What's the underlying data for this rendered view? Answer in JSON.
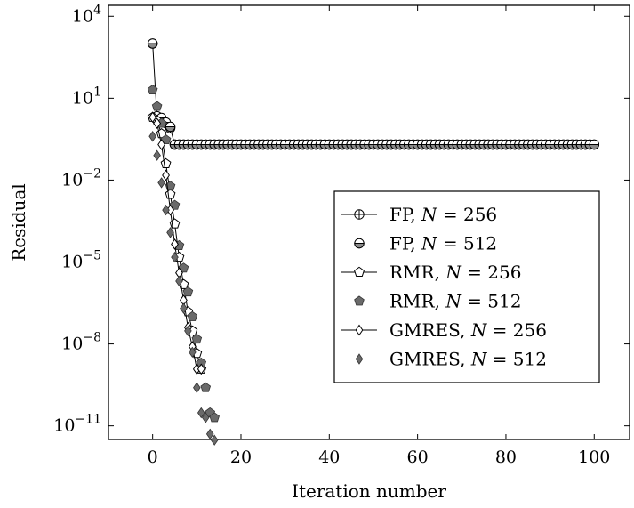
{
  "chart_data": {
    "type": "line",
    "title": "",
    "xlabel": "Iteration number",
    "ylabel": "Residual",
    "xlim": [
      -10,
      108
    ],
    "ylim_log10": [
      -11.5,
      4.4
    ],
    "y_scale": "log",
    "x_ticks": [
      0,
      20,
      40,
      60,
      80,
      100
    ],
    "x_tick_labels": [
      "0",
      "20",
      "40",
      "60",
      "80",
      "100"
    ],
    "y_ticks": [
      {
        "base": "10",
        "exp": "4",
        "value": 10000
      },
      {
        "base": "10",
        "exp": "1",
        "value": 10
      },
      {
        "base": "10",
        "exp": "−2",
        "value": 0.01
      },
      {
        "base": "10",
        "exp": "−5",
        "value": 1e-05
      },
      {
        "base": "10",
        "exp": "−8",
        "value": 1e-08
      },
      {
        "base": "10",
        "exp": "−11",
        "value": 1e-11
      }
    ],
    "grid": false,
    "legend_position": "center-right",
    "series": [
      {
        "legend_prefix": "FP, ",
        "legend_var": "N",
        "legend_rest": " = 256",
        "marker": "circle-plus",
        "line": true,
        "x": [
          0,
          1,
          2,
          3,
          4,
          5,
          6,
          7,
          8,
          9,
          10,
          11,
          12,
          13,
          14,
          15,
          16,
          17,
          18,
          19,
          20,
          21,
          22,
          23,
          24,
          25,
          26,
          27,
          28,
          29,
          30,
          31,
          32,
          33,
          34,
          35,
          36,
          37,
          38,
          39,
          40,
          41,
          42,
          43,
          44,
          45,
          46,
          47,
          48,
          49,
          50,
          51,
          52,
          53,
          54,
          55,
          56,
          57,
          58,
          59,
          60,
          61,
          62,
          63,
          64,
          65,
          66,
          67,
          68,
          69,
          70,
          71,
          72,
          73,
          74,
          75,
          76,
          77,
          78,
          79,
          80,
          81,
          82,
          83,
          84,
          85,
          86,
          87,
          88,
          89,
          90,
          91,
          92,
          93,
          94,
          95,
          96,
          97,
          98,
          99,
          100
        ],
        "y": [
          1000,
          2,
          1.8,
          1.2,
          0.8,
          0.2,
          0.2,
          0.2,
          0.2,
          0.2,
          0.2,
          0.2,
          0.2,
          0.2,
          0.2,
          0.2,
          0.2,
          0.2,
          0.2,
          0.2,
          0.2,
          0.2,
          0.2,
          0.2,
          0.2,
          0.2,
          0.2,
          0.2,
          0.2,
          0.2,
          0.2,
          0.2,
          0.2,
          0.2,
          0.2,
          0.2,
          0.2,
          0.2,
          0.2,
          0.2,
          0.2,
          0.2,
          0.2,
          0.2,
          0.2,
          0.2,
          0.2,
          0.2,
          0.2,
          0.2,
          0.2,
          0.2,
          0.2,
          0.2,
          0.2,
          0.2,
          0.2,
          0.2,
          0.2,
          0.2,
          0.2,
          0.2,
          0.2,
          0.2,
          0.2,
          0.2,
          0.2,
          0.2,
          0.2,
          0.2,
          0.2,
          0.2,
          0.2,
          0.2,
          0.2,
          0.2,
          0.2,
          0.2,
          0.2,
          0.2,
          0.2,
          0.2,
          0.2,
          0.2,
          0.2,
          0.2,
          0.2,
          0.2,
          0.2,
          0.2,
          0.2,
          0.2,
          0.2,
          0.2,
          0.2,
          0.2,
          0.2,
          0.2,
          0.2,
          0.2,
          0.2
        ]
      },
      {
        "legend_prefix": "FP, ",
        "legend_var": "N",
        "legend_rest": " = 512",
        "marker": "circle-half",
        "line": false,
        "x": [
          0,
          1,
          2,
          3,
          4,
          5,
          6,
          7,
          8,
          9,
          10,
          11,
          12,
          13,
          14,
          15,
          16,
          17,
          18,
          19,
          20,
          21,
          22,
          23,
          24,
          25,
          26,
          27,
          28,
          29,
          30,
          31,
          32,
          33,
          34,
          35,
          36,
          37,
          38,
          39,
          40,
          41,
          42,
          43,
          44,
          45,
          46,
          47,
          48,
          49,
          50,
          51,
          52,
          53,
          54,
          55,
          56,
          57,
          58,
          59,
          60,
          61,
          62,
          63,
          64,
          65,
          66,
          67,
          68,
          69,
          70,
          71,
          72,
          73,
          74,
          75,
          76,
          77,
          78,
          79,
          80,
          81,
          82,
          83,
          84,
          85,
          86,
          87,
          88,
          89,
          90,
          91,
          92,
          93,
          94,
          95,
          96,
          97,
          98,
          99,
          100
        ],
        "y": [
          1000,
          2.2,
          1.9,
          1.3,
          0.9,
          0.2,
          0.2,
          0.2,
          0.2,
          0.2,
          0.2,
          0.2,
          0.2,
          0.2,
          0.2,
          0.2,
          0.2,
          0.2,
          0.2,
          0.2,
          0.2,
          0.2,
          0.2,
          0.2,
          0.2,
          0.2,
          0.2,
          0.2,
          0.2,
          0.2,
          0.2,
          0.2,
          0.2,
          0.2,
          0.2,
          0.2,
          0.2,
          0.2,
          0.2,
          0.2,
          0.2,
          0.2,
          0.2,
          0.2,
          0.2,
          0.2,
          0.2,
          0.2,
          0.2,
          0.2,
          0.2,
          0.2,
          0.2,
          0.2,
          0.2,
          0.2,
          0.2,
          0.2,
          0.2,
          0.2,
          0.2,
          0.2,
          0.2,
          0.2,
          0.2,
          0.2,
          0.2,
          0.2,
          0.2,
          0.2,
          0.2,
          0.2,
          0.2,
          0.2,
          0.2,
          0.2,
          0.2,
          0.2,
          0.2,
          0.2,
          0.2,
          0.2,
          0.2,
          0.2,
          0.2,
          0.2,
          0.2,
          0.2,
          0.2,
          0.2,
          0.2,
          0.2,
          0.2,
          0.2,
          0.2,
          0.2,
          0.2,
          0.2,
          0.2,
          0.2,
          0.2
        ]
      },
      {
        "legend_prefix": "RMR, ",
        "legend_var": "N",
        "legend_rest": " = 256",
        "marker": "pentagon-open",
        "line": true,
        "x": [
          0,
          1,
          2,
          3,
          4,
          5,
          6,
          7,
          8,
          9,
          10,
          11
        ],
        "y": [
          2,
          1.5,
          0.5,
          0.04,
          0.003,
          0.00025,
          1.5e-05,
          1.5e-06,
          1.5e-07,
          3e-08,
          4.5e-09,
          1.2e-09
        ]
      },
      {
        "legend_prefix": "RMR, ",
        "legend_var": "N",
        "legend_rest": " = 512",
        "marker": "pentagon-filled",
        "line": false,
        "x": [
          0,
          1,
          2,
          3,
          4,
          5,
          6,
          7,
          8,
          9,
          10,
          11,
          12,
          13,
          14
        ],
        "y": [
          20,
          5,
          1.2,
          0.3,
          0.006,
          0.0012,
          4e-05,
          6e-06,
          8e-07,
          1e-07,
          1.5e-08,
          2e-09,
          2.5e-10,
          3e-11,
          2e-11
        ]
      },
      {
        "legend_prefix": "GMRES, ",
        "legend_var": "N",
        "legend_rest": " = 256",
        "marker": "diamond-open",
        "line": true,
        "x": [
          0,
          1,
          2,
          3,
          4,
          5,
          6,
          7,
          8,
          9,
          10,
          11
        ],
        "y": [
          2,
          1.2,
          0.2,
          0.015,
          0.0008,
          4.5e-05,
          4e-06,
          4e-07,
          4e-08,
          8e-09,
          1.2e-09,
          1.2e-09
        ]
      },
      {
        "legend_prefix": "GMRES, ",
        "legend_var": "N",
        "legend_rest": " = 512",
        "marker": "diamond-filled",
        "line": false,
        "x": [
          0,
          1,
          2,
          3,
          4,
          5,
          6,
          7,
          8,
          9,
          10,
          11,
          12,
          13,
          14
        ],
        "y": [
          0.4,
          0.08,
          0.008,
          0.0008,
          0.00012,
          1.5e-05,
          2e-06,
          2e-07,
          3e-08,
          5e-09,
          2.5e-10,
          3e-11,
          2e-11,
          5e-12,
          3e-12
        ]
      }
    ]
  }
}
